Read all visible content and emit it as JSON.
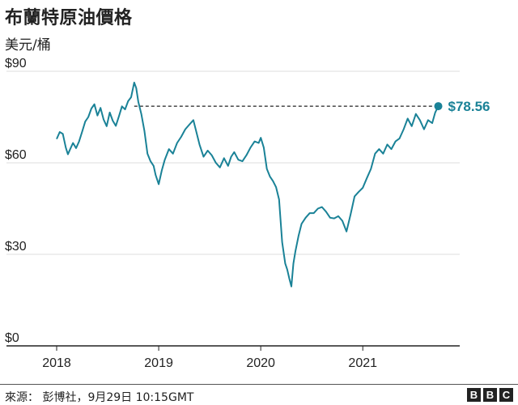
{
  "title": "布蘭特原油價格",
  "subtitle": "美元/桶",
  "source": "來源： 彭博社，9月29日 10:15GMT",
  "logo": [
    "B",
    "B",
    "C"
  ],
  "colors": {
    "line": "#1a8297",
    "axis": "#222222",
    "grid": "#dddddd",
    "ref": "#222222"
  },
  "chart_data": {
    "type": "line",
    "title": "布蘭特原油價格",
    "ylabel": "美元/桶",
    "ylim": [
      0,
      90
    ],
    "xlim": [
      2018.0,
      2021.95
    ],
    "y_ticks": [
      0,
      30,
      60,
      90
    ],
    "y_tick_labels": [
      "$0",
      "$30",
      "$60",
      "$90"
    ],
    "x_ticks": [
      2018,
      2019,
      2020,
      2021
    ],
    "x_tick_labels": [
      "2018",
      "2019",
      "2020",
      "2021"
    ],
    "grid": true,
    "reference_line": {
      "y": 78.56,
      "from_x": 2018.76,
      "to_x": 2021.74,
      "style": "dashed"
    },
    "last_point": {
      "x": 2021.74,
      "y": 78.56,
      "label": "$78.56"
    },
    "series": [
      {
        "x": [
          2018.0,
          2018.03,
          2018.06,
          2018.09,
          2018.11,
          2018.13,
          2018.16,
          2018.19,
          2018.22,
          2018.25,
          2018.28,
          2018.31,
          2018.34,
          2018.37,
          2018.4,
          2018.43,
          2018.46,
          2018.49,
          2018.52,
          2018.55,
          2018.58,
          2018.61,
          2018.64,
          2018.67,
          2018.7,
          2018.73,
          2018.76,
          2018.78,
          2018.8,
          2018.83,
          2018.86,
          2018.89,
          2018.92,
          2018.95,
          2018.97,
          2019.0,
          2019.03,
          2019.06,
          2019.1,
          2019.14,
          2019.18,
          2019.22,
          2019.26,
          2019.3,
          2019.34,
          2019.37,
          2019.4,
          2019.44,
          2019.48,
          2019.52,
          2019.56,
          2019.6,
          2019.64,
          2019.68,
          2019.71,
          2019.74,
          2019.78,
          2019.82,
          2019.86,
          2019.9,
          2019.94,
          2019.98,
          2020.0,
          2020.03,
          2020.06,
          2020.09,
          2020.12,
          2020.15,
          2020.18,
          2020.21,
          2020.24,
          2020.26,
          2020.28,
          2020.3,
          2020.32,
          2020.34,
          2020.37,
          2020.4,
          2020.44,
          2020.48,
          2020.52,
          2020.56,
          2020.6,
          2020.64,
          2020.68,
          2020.72,
          2020.76,
          2020.8,
          2020.84,
          2020.88,
          2020.92,
          2020.96,
          2021.0,
          2021.04,
          2021.08,
          2021.12,
          2021.16,
          2021.2,
          2021.24,
          2021.28,
          2021.32,
          2021.36,
          2021.4,
          2021.44,
          2021.48,
          2021.52,
          2021.56,
          2021.6,
          2021.64,
          2021.68,
          2021.71,
          2021.74
        ],
        "y": [
          67.8,
          70.1,
          69.5,
          65.0,
          62.8,
          64.3,
          66.5,
          64.8,
          67.0,
          70.2,
          73.5,
          75.0,
          77.8,
          79.2,
          75.5,
          78.0,
          74.2,
          72.0,
          76.5,
          73.8,
          72.1,
          75.2,
          78.5,
          77.5,
          80.2,
          81.5,
          86.3,
          84.5,
          80.0,
          76.0,
          70.5,
          63.0,
          60.5,
          59.0,
          56.0,
          53.0,
          57.5,
          61.0,
          64.5,
          63.0,
          66.5,
          68.5,
          71.0,
          72.5,
          74.0,
          70.0,
          66.0,
          62.0,
          64.0,
          62.5,
          60.0,
          58.5,
          61.5,
          59.0,
          62.0,
          63.5,
          61.0,
          60.5,
          62.5,
          65.0,
          67.0,
          66.5,
          68.2,
          65.0,
          58.0,
          55.5,
          54.0,
          52.0,
          48.0,
          34.0,
          27.0,
          25.0,
          22.0,
          19.5,
          27.0,
          31.0,
          36.0,
          40.0,
          42.0,
          43.5,
          43.5,
          45.0,
          45.5,
          44.0,
          42.0,
          41.8,
          42.5,
          41.0,
          37.5,
          43.0,
          49.0,
          50.5,
          51.8,
          55.0,
          58.0,
          63.0,
          64.5,
          63.0,
          66.0,
          64.5,
          67.0,
          68.0,
          71.0,
          74.5,
          72.0,
          76.0,
          74.0,
          71.0,
          74.0,
          73.0,
          76.5,
          78.56
        ]
      }
    ]
  }
}
